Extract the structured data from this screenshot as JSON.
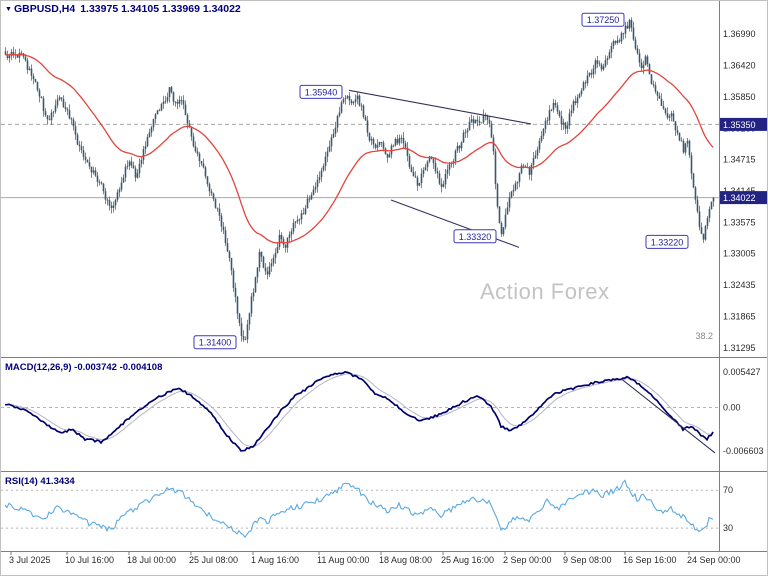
{
  "header": {
    "symbol_period": "GBPUSD,H4",
    "ohlc": "1.33975 1.34105 1.33969 1.34022",
    "dropdown_icon": "▼"
  },
  "watermark": "Action Forex",
  "indicators": {
    "macd_title": "MACD(12,26,9) -0.003742 -0.004108",
    "rsi_title": "RSI(14) 41.3434"
  },
  "colors": {
    "background": "#ffffff",
    "candle": "#38586b",
    "ma": "#e2443c",
    "macd": "#00006e",
    "signal": "#b4b4c8",
    "rsi": "#5aaae2",
    "trend": "#31315c",
    "hline": "#a8a8a8",
    "dash": "#b4b4b4",
    "axis_text": "#2b2b2b",
    "box_border": "#3a3ab8",
    "box_text": "#2323a0",
    "tag_bg": "#232384",
    "title": "#00007d",
    "watermark": "#c3c3c3",
    "separator": "#7f7f7f"
  },
  "chart_data": [
    {
      "type": "candlestick",
      "panel": "price",
      "symbol": "GBPUSD",
      "timeframe": "H4",
      "current_ohlc": {
        "open": 1.33975,
        "high": 1.34105,
        "low": 1.33969,
        "close": 1.34022
      },
      "bars": 355,
      "ylim": [
        1.31204,
        1.37335
      ],
      "y_ticks": [
        1.3699,
        1.3642,
        1.3585,
        1.3528,
        1.34715,
        1.34145,
        1.33575,
        1.33005,
        1.32435,
        1.31865,
        1.31295
      ],
      "x_ticks": [
        {
          "bar": 3,
          "label": "3 Jul 2025"
        },
        {
          "bar": 31,
          "label": "10 Jul 16:00"
        },
        {
          "bar": 62,
          "label": "18 Jul 00:00"
        },
        {
          "bar": 93,
          "label": "25 Jul 08:00"
        },
        {
          "bar": 124,
          "label": "1 Aug 16:00"
        },
        {
          "bar": 157,
          "label": "11 Aug 00:00"
        },
        {
          "bar": 188,
          "label": "18 Aug 08:00"
        },
        {
          "bar": 219,
          "label": "25 Aug 16:00"
        },
        {
          "bar": 250,
          "label": "2 Sep 00:00"
        },
        {
          "bar": 280,
          "label": "9 Sep 08:00"
        },
        {
          "bar": 310,
          "label": "16 Sep 16:00"
        },
        {
          "bar": 342,
          "label": "24 Sep 00:00"
        }
      ],
      "close_path": [
        [
          0,
          1.3655
        ],
        [
          3,
          1.3672
        ],
        [
          6,
          1.365
        ],
        [
          8,
          1.3668
        ],
        [
          11,
          1.364
        ],
        [
          14,
          1.3622
        ],
        [
          16,
          1.3598
        ],
        [
          19,
          1.3565
        ],
        [
          22,
          1.354
        ],
        [
          24,
          1.356
        ],
        [
          27,
          1.3588
        ],
        [
          30,
          1.3562
        ],
        [
          33,
          1.354
        ],
        [
          36,
          1.3505
        ],
        [
          39,
          1.348
        ],
        [
          42,
          1.3455
        ],
        [
          45,
          1.3442
        ],
        [
          48,
          1.3425
        ],
        [
          50,
          1.34
        ],
        [
          53,
          1.3378
        ],
        [
          56,
          1.3412
        ],
        [
          59,
          1.3445
        ],
        [
          62,
          1.347
        ],
        [
          65,
          1.344
        ],
        [
          68,
          1.3475
        ],
        [
          71,
          1.351
        ],
        [
          74,
          1.3545
        ],
        [
          78,
          1.3572
        ],
        [
          82,
          1.3596
        ],
        [
          85,
          1.357
        ],
        [
          88,
          1.3585
        ],
        [
          91,
          1.354
        ],
        [
          94,
          1.3495
        ],
        [
          97,
          1.3468
        ],
        [
          100,
          1.3442
        ],
        [
          103,
          1.3408
        ],
        [
          106,
          1.3378
        ],
        [
          109,
          1.3345
        ],
        [
          112,
          1.329
        ],
        [
          114,
          1.324
        ],
        [
          116,
          1.3195
        ],
        [
          118,
          1.3155
        ],
        [
          120,
          1.3148
        ],
        [
          122,
          1.3195
        ],
        [
          125,
          1.3258
        ],
        [
          127,
          1.3305
        ],
        [
          129,
          1.328
        ],
        [
          131,
          1.3262
        ],
        [
          134,
          1.3298
        ],
        [
          137,
          1.333
        ],
        [
          140,
          1.3312
        ],
        [
          143,
          1.3345
        ],
        [
          146,
          1.3362
        ],
        [
          150,
          1.3385
        ],
        [
          154,
          1.342
        ],
        [
          158,
          1.3452
        ],
        [
          162,
          1.35
        ],
        [
          166,
          1.3548
        ],
        [
          170,
          1.359
        ],
        [
          173,
          1.3575
        ],
        [
          176,
          1.3588
        ],
        [
          179,
          1.355
        ],
        [
          182,
          1.3512
        ],
        [
          185,
          1.349
        ],
        [
          188,
          1.3502
        ],
        [
          191,
          1.3478
        ],
        [
          194,
          1.3498
        ],
        [
          197,
          1.3512
        ],
        [
          200,
          1.3488
        ],
        [
          203,
          1.3452
        ],
        [
          206,
          1.3425
        ],
        [
          209,
          1.3455
        ],
        [
          212,
          1.3478
        ],
        [
          215,
          1.3452
        ],
        [
          218,
          1.3425
        ],
        [
          221,
          1.3448
        ],
        [
          224,
          1.3472
        ],
        [
          227,
          1.3498
        ],
        [
          230,
          1.3522
        ],
        [
          233,
          1.3545
        ],
        [
          236,
          1.3538
        ],
        [
          239,
          1.3548
        ],
        [
          242,
          1.3535
        ],
        [
          244,
          1.348
        ],
        [
          246,
          1.338
        ],
        [
          248,
          1.3335
        ],
        [
          250,
          1.3372
        ],
        [
          253,
          1.3408
        ],
        [
          256,
          1.3438
        ],
        [
          259,
          1.3465
        ],
        [
          262,
          1.3442
        ],
        [
          265,
          1.348
        ],
        [
          268,
          1.3515
        ],
        [
          271,
          1.3548
        ],
        [
          274,
          1.3575
        ],
        [
          277,
          1.3545
        ],
        [
          280,
          1.3528
        ],
        [
          283,
          1.3562
        ],
        [
          286,
          1.3588
        ],
        [
          289,
          1.3605
        ],
        [
          292,
          1.3625
        ],
        [
          295,
          1.3648
        ],
        [
          298,
          1.3638
        ],
        [
          301,
          1.3662
        ],
        [
          304,
          1.368
        ],
        [
          307,
          1.3692
        ],
        [
          310,
          1.3708
        ],
        [
          312,
          1.3722
        ],
        [
          314,
          1.3692
        ],
        [
          316,
          1.366
        ],
        [
          318,
          1.364
        ],
        [
          320,
          1.3658
        ],
        [
          322,
          1.3625
        ],
        [
          325,
          1.3595
        ],
        [
          328,
          1.3568
        ],
        [
          331,
          1.3545
        ],
        [
          333,
          1.3558
        ],
        [
          335,
          1.353
        ],
        [
          337,
          1.3512
        ],
        [
          339,
          1.3488
        ],
        [
          341,
          1.3505
        ],
        [
          343,
          1.3452
        ],
        [
          345,
          1.34
        ],
        [
          347,
          1.3345
        ],
        [
          349,
          1.3328
        ],
        [
          351,
          1.3368
        ],
        [
          353,
          1.339
        ],
        [
          354,
          1.34022
        ]
      ],
      "ma": {
        "type": "ema",
        "period": 45
      },
      "horizontal_lines": [
        {
          "price": 1.3535,
          "label": "1.35350",
          "style": "dashed"
        },
        {
          "price": 1.34022,
          "label": "1.34022",
          "style": "solid"
        }
      ],
      "price_labels": [
        {
          "bar": 299,
          "price": 1.3725,
          "label": "1.37250"
        },
        {
          "bar": 158,
          "price": 1.3594,
          "label": "1.35940"
        },
        {
          "bar": 235,
          "price": 1.3332,
          "label": "1.33320"
        },
        {
          "bar": 331,
          "price": 1.3322,
          "label": "1.33220"
        },
        {
          "bar": 105,
          "price": 1.314,
          "label": "1.31400"
        }
      ],
      "trendlines": [
        {
          "from": [
            172,
            1.3597
          ],
          "to": [
            263,
            1.3536
          ]
        },
        {
          "from": [
            193,
            1.3398
          ],
          "to": [
            257,
            1.3312
          ]
        }
      ],
      "fib_label": {
        "text": "38.2",
        "price": 1.3146
      }
    },
    {
      "type": "line",
      "panel": "macd",
      "name": "MACD(12,26,9)",
      "current_values": {
        "macd": -0.003742,
        "signal": -0.004108
      },
      "ylim": [
        -0.00904,
        0.00707
      ],
      "y_ticks": [
        {
          "v": 0.005427,
          "label": "0.005427"
        },
        {
          "v": 0,
          "label": "0.00"
        },
        {
          "v": -0.006603,
          "label": "-0.006603"
        }
      ],
      "signal_period": 9,
      "macd_path": [
        [
          0,
          0.0005
        ],
        [
          8,
          -0.0002
        ],
        [
          15,
          -0.0013
        ],
        [
          23,
          -0.003
        ],
        [
          28,
          -0.0039
        ],
        [
          33,
          -0.0033
        ],
        [
          40,
          -0.0048
        ],
        [
          48,
          -0.0052
        ],
        [
          55,
          -0.0036
        ],
        [
          63,
          -0.0013
        ],
        [
          73,
          0.001
        ],
        [
          83,
          0.0025
        ],
        [
          88,
          0.0028
        ],
        [
          95,
          0.0013
        ],
        [
          103,
          -0.0008
        ],
        [
          110,
          -0.0039
        ],
        [
          118,
          -0.0066
        ],
        [
          124,
          -0.0059
        ],
        [
          130,
          -0.0036
        ],
        [
          138,
          -0.0005
        ],
        [
          145,
          0.0017
        ],
        [
          153,
          0.0033
        ],
        [
          160,
          0.0048
        ],
        [
          170,
          0.0054
        ],
        [
          178,
          0.0043
        ],
        [
          185,
          0.0022
        ],
        [
          193,
          0.001
        ],
        [
          200,
          -0.0008
        ],
        [
          208,
          -0.0021
        ],
        [
          215,
          -0.0013
        ],
        [
          223,
          -0.0002
        ],
        [
          230,
          0.001
        ],
        [
          237,
          0.0017
        ],
        [
          243,
          0.0002
        ],
        [
          248,
          -0.0028
        ],
        [
          253,
          -0.0036
        ],
        [
          260,
          -0.0021
        ],
        [
          268,
          0.0002
        ],
        [
          275,
          0.0022
        ],
        [
          283,
          0.0028
        ],
        [
          290,
          0.0034
        ],
        [
          298,
          0.004
        ],
        [
          305,
          0.0043
        ],
        [
          312,
          0.0046
        ],
        [
          318,
          0.0033
        ],
        [
          325,
          0.0013
        ],
        [
          333,
          -0.0013
        ],
        [
          339,
          -0.0033
        ],
        [
          343,
          -0.0028
        ],
        [
          347,
          -0.0039
        ],
        [
          351,
          -0.0048
        ],
        [
          354,
          -0.003742
        ]
      ],
      "trendline": {
        "from": [
          308,
          0.0044
        ],
        "to": [
          355,
          -0.0069
        ]
      }
    },
    {
      "type": "line",
      "panel": "rsi",
      "name": "RSI(14)",
      "current_value": 41.3434,
      "ylim": [
        10,
        86
      ],
      "levels": [
        70,
        30
      ],
      "path": [
        [
          0,
          55
        ],
        [
          10,
          48
        ],
        [
          20,
          40
        ],
        [
          26,
          52
        ],
        [
          33,
          44
        ],
        [
          42,
          35
        ],
        [
          53,
          28
        ],
        [
          60,
          45
        ],
        [
          74,
          62
        ],
        [
          82,
          72
        ],
        [
          88,
          68
        ],
        [
          94,
          55
        ],
        [
          103,
          42
        ],
        [
          112,
          30
        ],
        [
          120,
          22
        ],
        [
          127,
          40
        ],
        [
          131,
          35
        ],
        [
          137,
          48
        ],
        [
          146,
          52
        ],
        [
          158,
          60
        ],
        [
          170,
          75
        ],
        [
          176,
          72
        ],
        [
          182,
          58
        ],
        [
          191,
          48
        ],
        [
          197,
          55
        ],
        [
          206,
          42
        ],
        [
          212,
          52
        ],
        [
          218,
          44
        ],
        [
          227,
          55
        ],
        [
          233,
          62
        ],
        [
          242,
          58
        ],
        [
          248,
          28
        ],
        [
          256,
          42
        ],
        [
          262,
          38
        ],
        [
          271,
          58
        ],
        [
          277,
          52
        ],
        [
          286,
          65
        ],
        [
          295,
          70
        ],
        [
          298,
          64
        ],
        [
          307,
          72
        ],
        [
          310,
          78
        ],
        [
          316,
          60
        ],
        [
          320,
          65
        ],
        [
          325,
          52
        ],
        [
          331,
          45
        ],
        [
          333,
          50
        ],
        [
          339,
          42
        ],
        [
          343,
          35
        ],
        [
          347,
          26
        ],
        [
          349,
          28
        ],
        [
          352,
          38
        ],
        [
          354,
          41.34
        ]
      ]
    }
  ]
}
